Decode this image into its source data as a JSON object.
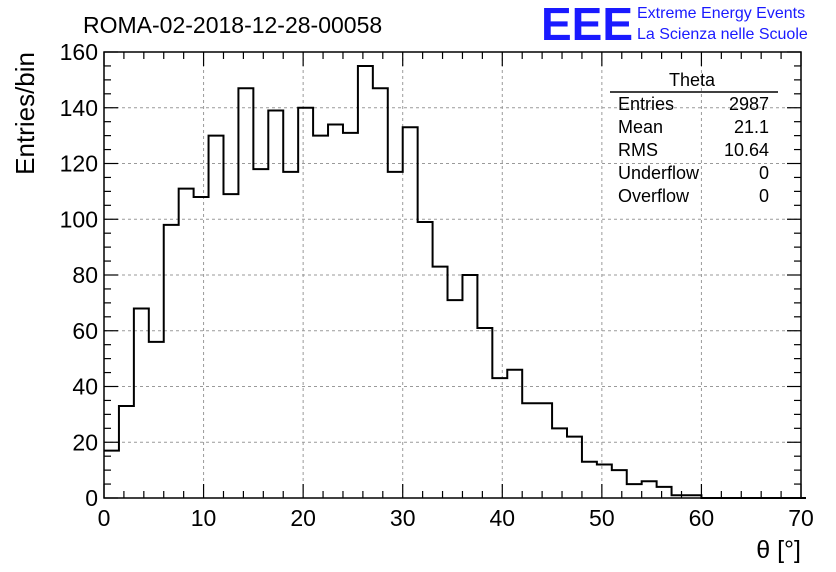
{
  "chart_data": {
    "type": "bar",
    "title": "ROMA-02-2018-12-28-00058",
    "xlabel": "θ [°]",
    "ylabel": "Entries/bin",
    "xlim": [
      0,
      70
    ],
    "ylim": [
      0,
      160
    ],
    "x_ticks": [
      "0",
      "10",
      "20",
      "30",
      "40",
      "50",
      "60",
      "70"
    ],
    "y_ticks": [
      "0",
      "20",
      "40",
      "60",
      "80",
      "100",
      "120",
      "140",
      "160"
    ],
    "grid": true,
    "bin_width": 1.5,
    "values": [
      17,
      33,
      68,
      56,
      98,
      111,
      108,
      130,
      109,
      147,
      118,
      139,
      117,
      140,
      130,
      134,
      131,
      155,
      147,
      117,
      133,
      99,
      83,
      71,
      80,
      61,
      43,
      46,
      34,
      34,
      25,
      22,
      13,
      12,
      10,
      5,
      6,
      4,
      1,
      1,
      0,
      0,
      0,
      0,
      0,
      0,
      0
    ]
  },
  "stats_box": {
    "title": "Theta",
    "rows": [
      {
        "label": "Entries",
        "value": "2987"
      },
      {
        "label": "Mean",
        "value": "21.1"
      },
      {
        "label": "RMS",
        "value": "10.64"
      },
      {
        "label": "Underflow",
        "value": "0"
      },
      {
        "label": "Overflow",
        "value": "0"
      }
    ]
  },
  "logo": {
    "mark": "EEE",
    "line1": "Extreme Energy Events",
    "line2": "La Scienza nelle Scuole",
    "color": "#1a1aff"
  }
}
